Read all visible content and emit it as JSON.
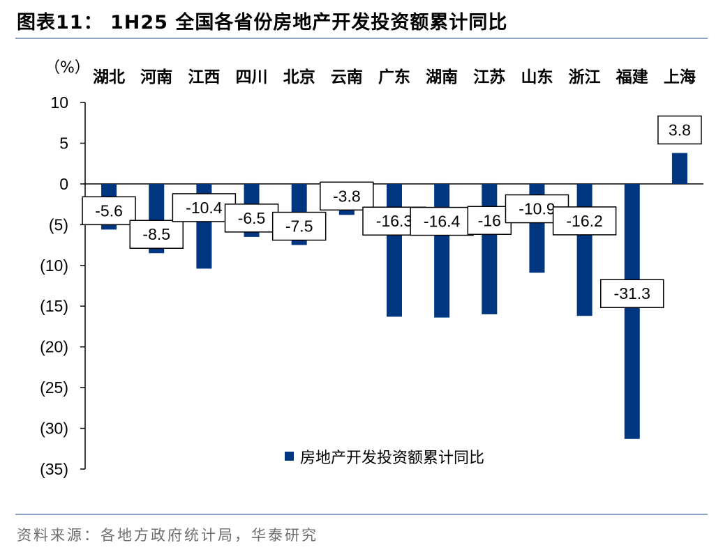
{
  "header": {
    "title": "图表11：  1H25 全国各省份房地产开发投资额累计同比"
  },
  "footer": {
    "source": "资料来源：各地方政府统计局，华泰研究"
  },
  "colors": {
    "bar": "#003580",
    "rule": "#8ea3c4",
    "source_text": "#6f6f6f"
  },
  "chart_data": {
    "type": "bar",
    "unit_label": "（%）",
    "categories": [
      "湖北",
      "河南",
      "江西",
      "四川",
      "北京",
      "云南",
      "广东",
      "湖南",
      "江苏",
      "山东",
      "浙江",
      "福建",
      "上海"
    ],
    "series": [
      {
        "name": "房地产开发投资额累计同比",
        "values": [
          -5.6,
          -8.5,
          -10.4,
          -6.5,
          -7.5,
          -3.8,
          -16.3,
          -16.4,
          -16,
          -10.9,
          -16.2,
          -31.3,
          3.8
        ],
        "labels": [
          "-5.6",
          "-8.5",
          "-10.4",
          "-6.5",
          "-7.5",
          "-3.8",
          "-16.3",
          "-16.4",
          "-16",
          "-10.9",
          "-16.2",
          "-31.3",
          "3.8"
        ]
      }
    ],
    "yticks": [
      10,
      5,
      0,
      -5,
      -10,
      -15,
      -20,
      -25,
      -30,
      -35
    ],
    "ytick_labels": [
      "10",
      "5",
      "0",
      "(5)",
      "(10)",
      "(15)",
      "(20)",
      "(25)",
      "(30)",
      "(35)"
    ],
    "ylim": [
      -35,
      10
    ],
    "category_labels_position": "top",
    "legend_position": "bottom-center",
    "grid": false
  }
}
